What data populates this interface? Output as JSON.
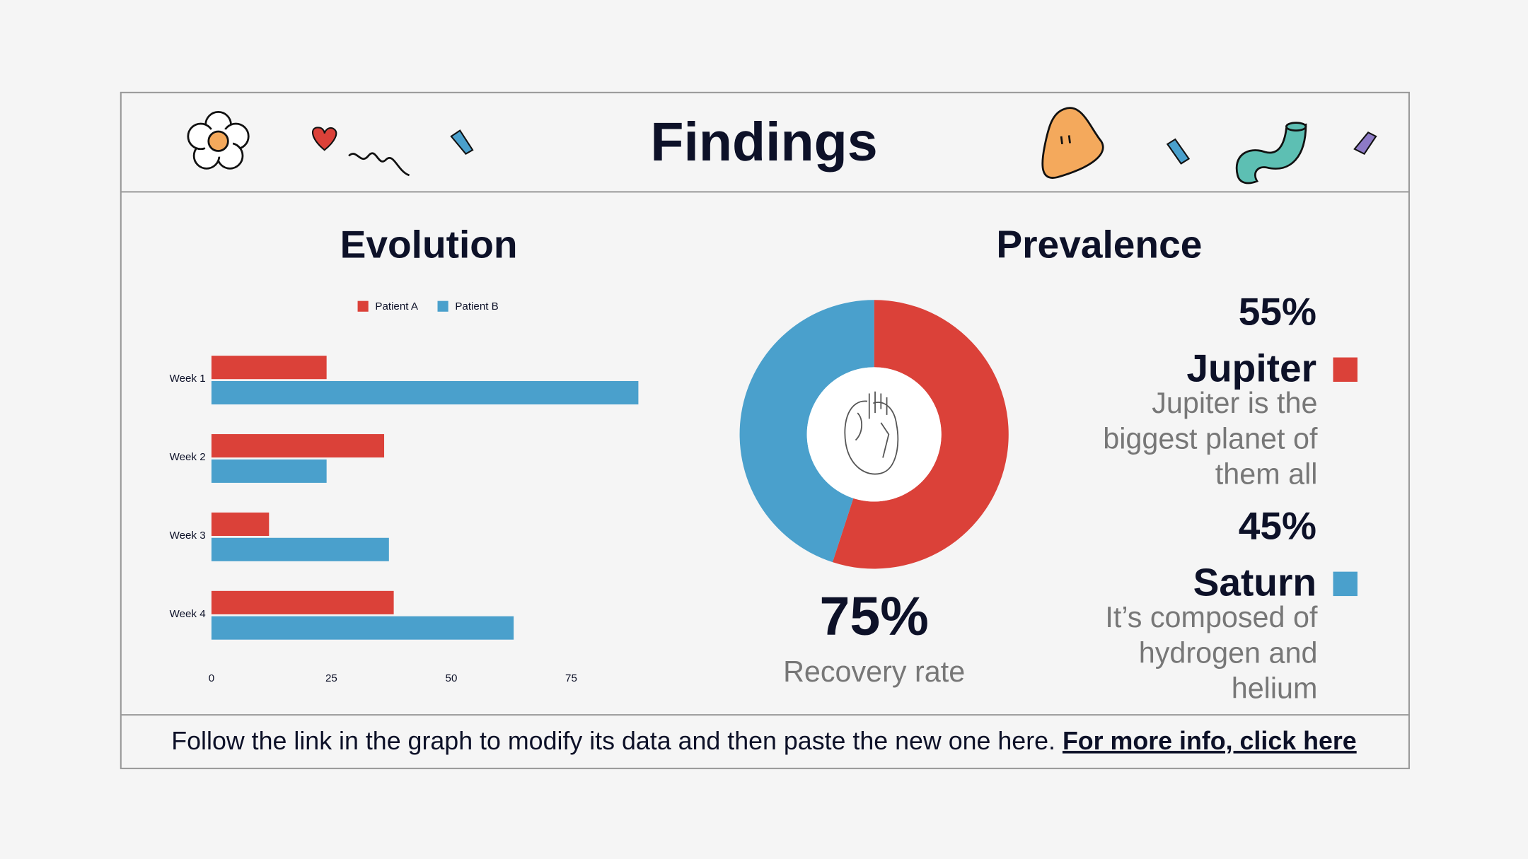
{
  "title": "Findings",
  "chart_data": [
    {
      "type": "bar",
      "orientation": "horizontal",
      "title": "Evolution",
      "categories": [
        "Week 1",
        "Week 2",
        "Week 3",
        "Week 4"
      ],
      "series": [
        {
          "name": "Patient A",
          "color": "#db4139",
          "values": [
            24,
            36,
            12,
            38
          ]
        },
        {
          "name": "Patient B",
          "color": "#4aa0cc",
          "values": [
            89,
            24,
            37,
            63
          ]
        }
      ],
      "xlim": [
        0,
        90
      ],
      "xticks": [
        0,
        25,
        50,
        75
      ],
      "grid": false,
      "legend": "top"
    },
    {
      "type": "pie",
      "title": "Prevalence",
      "donut": true,
      "categories": [
        "Jupiter",
        "Saturn"
      ],
      "values": [
        55,
        45
      ],
      "value_labels": [
        "55%",
        "45%"
      ],
      "colors": [
        "#db4139",
        "#4aa0cc"
      ],
      "descriptions": [
        [
          "Jupiter is the",
          "biggest planet of",
          "them all"
        ],
        [
          "It’s composed of",
          "hydrogen and",
          "helium"
        ]
      ],
      "center_value": "75%",
      "center_label": "Recovery rate"
    }
  ],
  "footer": {
    "text": "Follow the link in the graph to modify its data and then paste the new one here.",
    "link": "For more info, click here"
  }
}
